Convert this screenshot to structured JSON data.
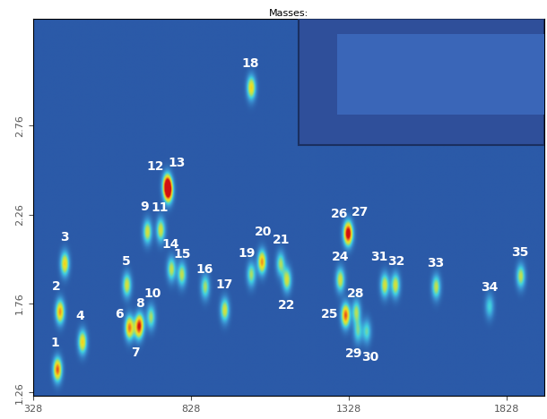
{
  "chart_data": {
    "type": "heatmap",
    "title": "Masses:",
    "xlim": [
      328,
      1948
    ],
    "ylim": [
      1.24,
      3.36
    ],
    "xticks": [
      328,
      828,
      1328,
      1828
    ],
    "yticks": [
      1.26,
      1.76,
      2.26,
      2.76
    ],
    "tick_labels": true,
    "grid": false,
    "peaks": {
      "labels": [
        "1",
        "2",
        "3",
        "4",
        "5",
        "6",
        "7",
        "8",
        "9",
        "10",
        "11",
        "12",
        "13",
        "14",
        "15",
        "16",
        "17",
        "18",
        "19",
        "20",
        "21",
        "22",
        "24",
        "25",
        "26",
        "27",
        "28",
        "29",
        "30",
        "31",
        "32",
        "33",
        "34",
        "35"
      ],
      "x": [
        404,
        412,
        427,
        483,
        624,
        632,
        660,
        666,
        689,
        700,
        731,
        751,
        756,
        765,
        798,
        872,
        934,
        1018,
        1018,
        1052,
        1111,
        1131,
        1300,
        1317,
        1322,
        1328,
        1351,
        1356,
        1384,
        1441,
        1475,
        1604,
        1773,
        1872
      ],
      "y": [
        1.385,
        1.71,
        1.98,
        1.54,
        1.86,
        1.62,
        1.62,
        1.64,
        2.16,
        1.68,
        2.17,
        2.42,
        2.39,
        1.95,
        1.92,
        1.85,
        1.72,
        2.97,
        1.92,
        1.99,
        1.98,
        1.89,
        1.89,
        1.69,
        2.15,
        2.15,
        1.71,
        1.6,
        1.6,
        1.86,
        1.86,
        1.85,
        1.74,
        1.91
      ],
      "intensity": [
        0.9,
        0.8,
        0.7,
        0.7,
        0.6,
        0.85,
        0.6,
        0.5,
        0.6,
        0.5,
        0.6,
        0.9,
        0.9,
        0.55,
        0.55,
        0.5,
        0.6,
        0.7,
        0.5,
        0.8,
        0.5,
        0.6,
        0.6,
        0.9,
        0.6,
        0.6,
        0.5,
        0.4,
        0.4,
        0.6,
        0.6,
        0.55,
        0.35,
        0.55
      ]
    }
  }
}
